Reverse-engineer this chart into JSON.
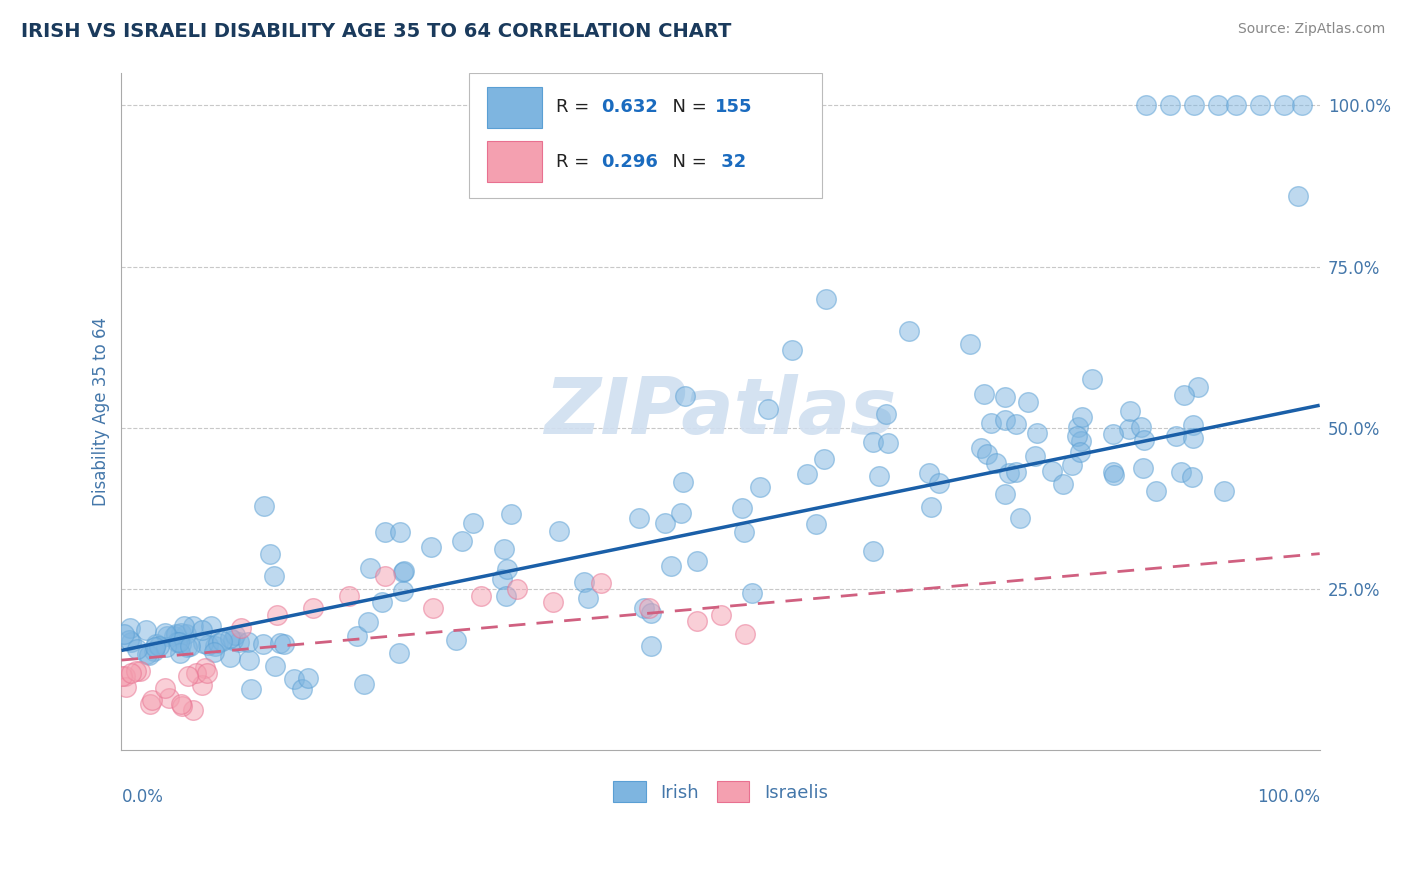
{
  "title": "IRISH VS ISRAELI DISABILITY AGE 35 TO 64 CORRELATION CHART",
  "source": "Source: ZipAtlas.com",
  "ylabel": "Disability Age 35 to 64",
  "irish_R": 0.632,
  "irish_N": 155,
  "israeli_R": 0.296,
  "israeli_N": 32,
  "irish_color": "#7eb5e0",
  "irish_edge_color": "#5a9fd4",
  "israeli_color": "#f4a0b0",
  "israeli_edge_color": "#e87090",
  "irish_line_color": "#1a5fa8",
  "israeli_line_color": "#d06080",
  "background_color": "#ffffff",
  "grid_color": "#c8c8c8",
  "title_color": "#1a3a5c",
  "axis_label_color": "#4477aa",
  "legend_text_color": "#1a6bbf",
  "legend_label_color": "#222222",
  "watermark_color": "#d0dff0",
  "xlim": [
    0,
    1.0
  ],
  "ylim": [
    0,
    1.05
  ],
  "irish_line_x0": 0.0,
  "irish_line_y0": 0.155,
  "irish_line_x1": 1.0,
  "irish_line_y1": 0.535,
  "israeli_line_x0": 0.0,
  "israeli_line_y0": 0.14,
  "israeli_line_x1": 1.0,
  "israeli_line_y1": 0.305
}
